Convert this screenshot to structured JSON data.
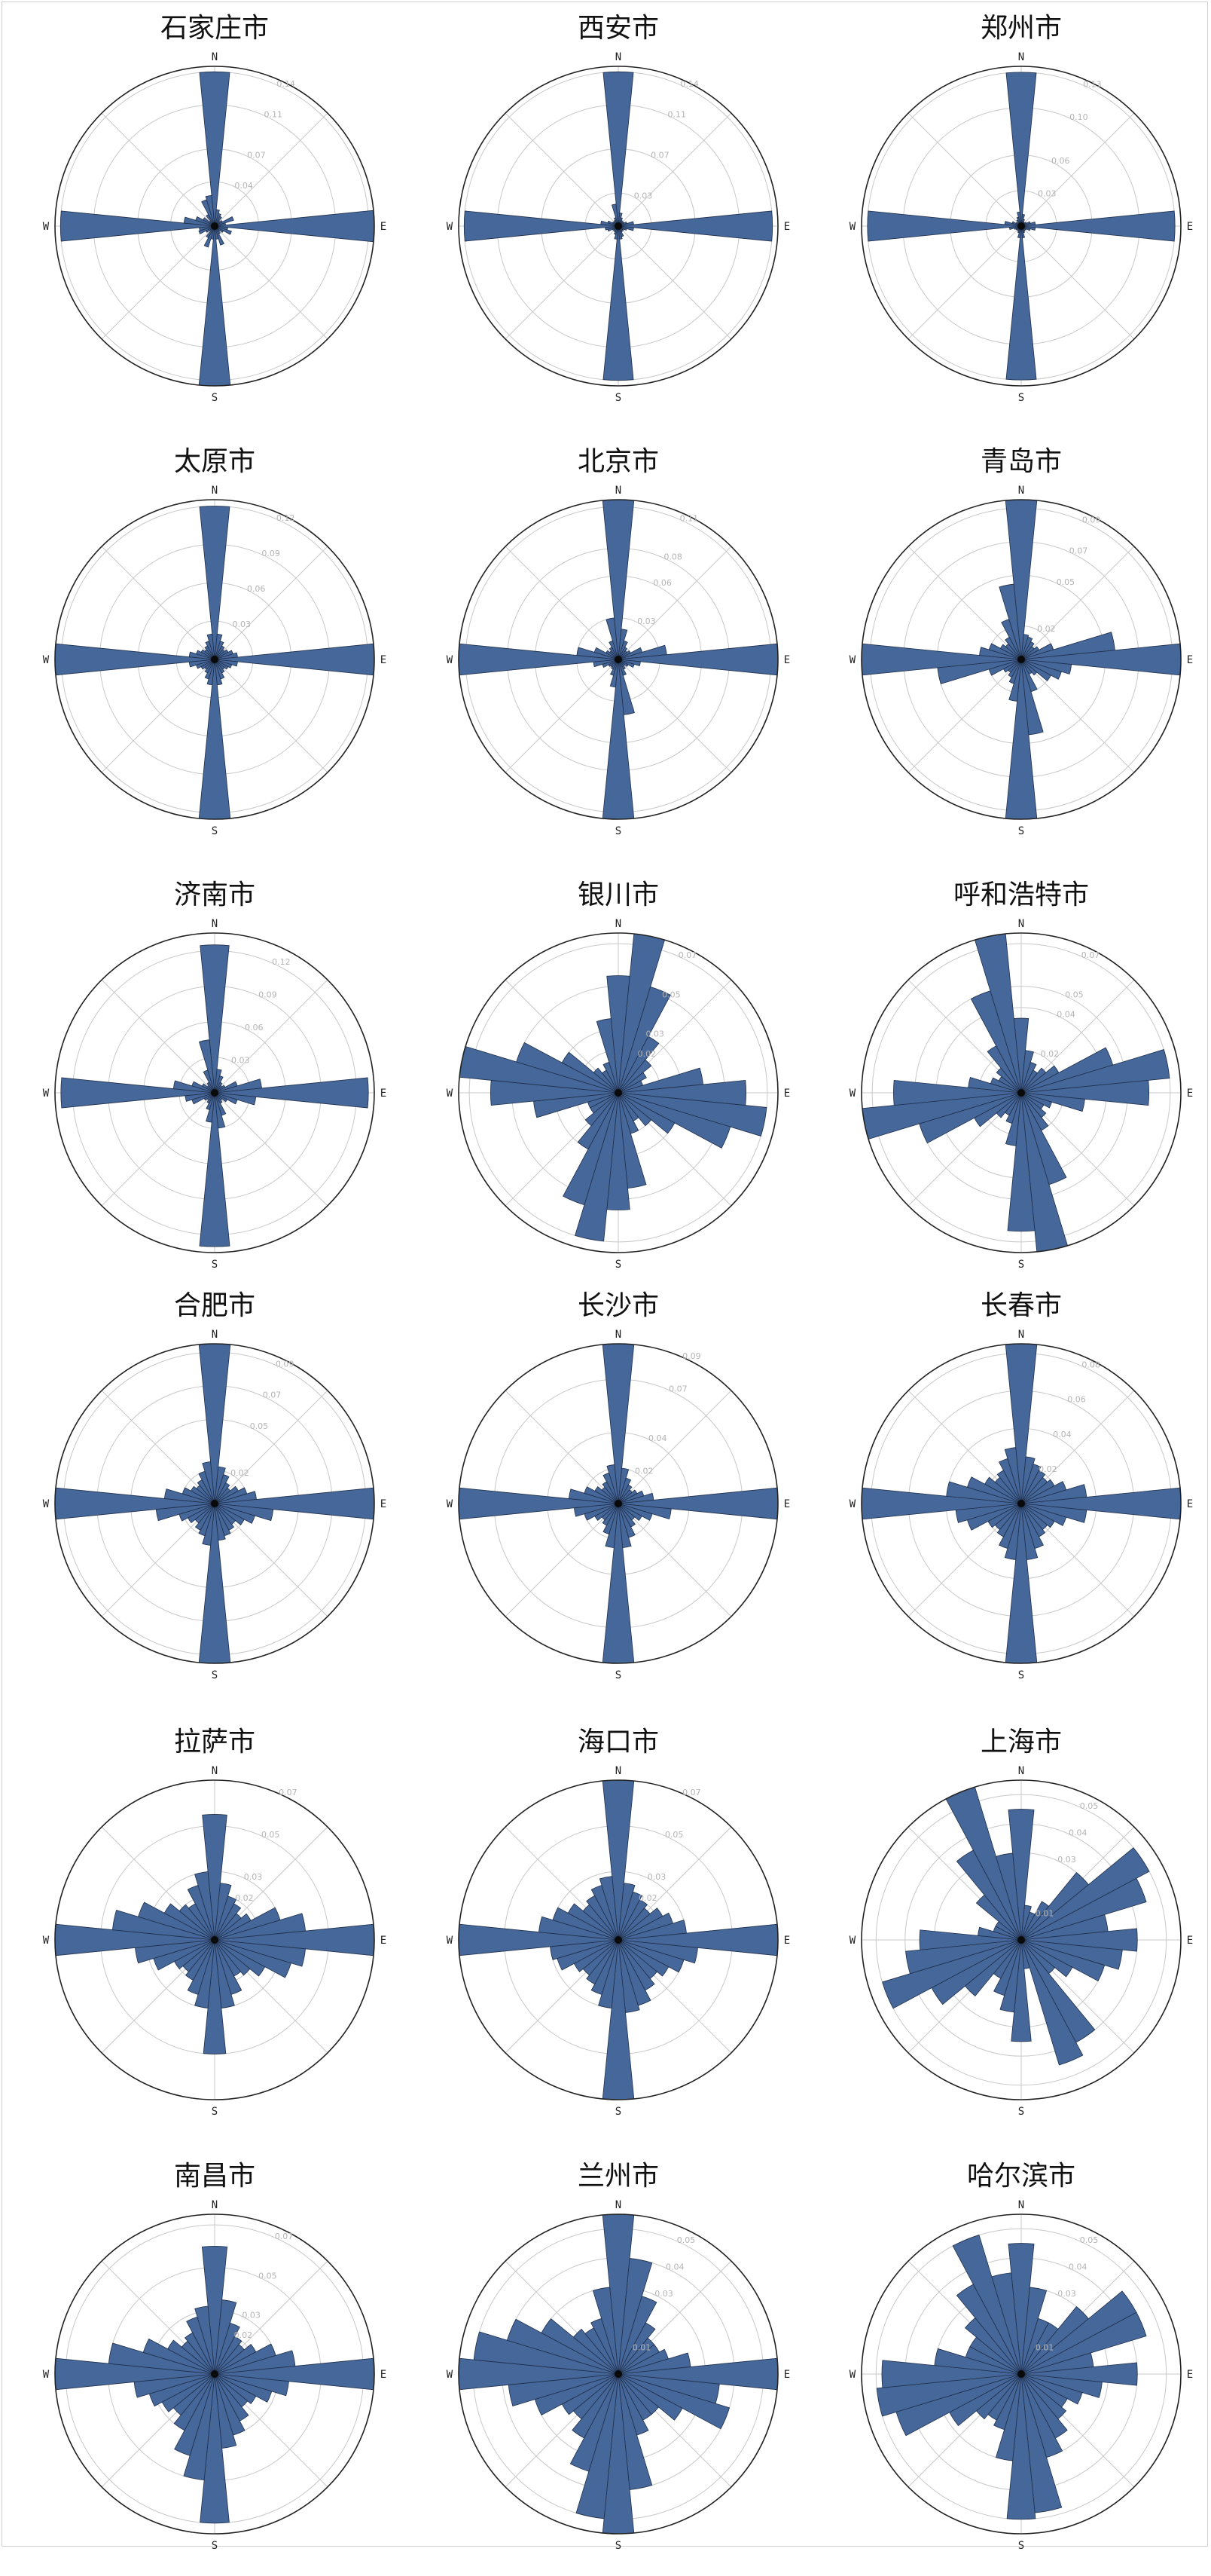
{
  "style": {
    "bar_fill": "#46679a",
    "bar_stroke": "#1f2f4a",
    "grid": "#c8c8c8",
    "outer": "#222222"
  },
  "chart_data": [
    {
      "type": "polar-bar",
      "title": "石家庄市",
      "directions": [
        "N",
        "E",
        "S",
        "W"
      ],
      "rmax": 0.145,
      "rticks": [
        0.04,
        0.07,
        0.11,
        0.14
      ],
      "values": [
        0.14,
        0.015,
        0.012,
        0.01,
        0.006,
        0.008,
        0.018,
        0.01,
        0.145,
        0.012,
        0.016,
        0.009,
        0.006,
        0.008,
        0.018,
        0.012,
        0.145,
        0.012,
        0.02,
        0.012,
        0.006,
        0.009,
        0.015,
        0.014,
        0.14,
        0.028,
        0.018,
        0.012,
        0.006,
        0.012,
        0.025,
        0.028
      ]
    },
    {
      "type": "polar-bar",
      "title": "西安市",
      "directions": [
        "N",
        "E",
        "S",
        "W"
      ],
      "rmax": 0.145,
      "rticks": [
        0.03,
        0.07,
        0.11,
        0.14
      ],
      "values": [
        0.14,
        0.012,
        0.008,
        0.006,
        0.005,
        0.006,
        0.008,
        0.014,
        0.14,
        0.014,
        0.008,
        0.006,
        0.005,
        0.006,
        0.01,
        0.012,
        0.14,
        0.012,
        0.008,
        0.006,
        0.005,
        0.006,
        0.01,
        0.012,
        0.14,
        0.016,
        0.01,
        0.006,
        0.005,
        0.006,
        0.008,
        0.02
      ]
    },
    {
      "type": "polar-bar",
      "title": "郑州市",
      "directions": [
        "N",
        "E",
        "S",
        "W"
      ],
      "rmax": 0.135,
      "rticks": [
        0.03,
        0.06,
        0.1,
        0.13
      ],
      "values": [
        0.13,
        0.01,
        0.006,
        0.004,
        0.004,
        0.005,
        0.008,
        0.012,
        0.13,
        0.012,
        0.008,
        0.005,
        0.004,
        0.005,
        0.006,
        0.01,
        0.13,
        0.01,
        0.006,
        0.005,
        0.004,
        0.005,
        0.006,
        0.01,
        0.13,
        0.014,
        0.008,
        0.005,
        0.004,
        0.006,
        0.008,
        0.012
      ]
    },
    {
      "type": "polar-bar",
      "title": "太原市",
      "directions": [
        "N",
        "E",
        "S",
        "W"
      ],
      "rmax": 0.125,
      "rticks": [
        0.03,
        0.06,
        0.09,
        0.12
      ],
      "values": [
        0.12,
        0.02,
        0.015,
        0.012,
        0.01,
        0.012,
        0.015,
        0.018,
        0.125,
        0.018,
        0.014,
        0.012,
        0.01,
        0.012,
        0.016,
        0.02,
        0.125,
        0.02,
        0.016,
        0.012,
        0.01,
        0.012,
        0.015,
        0.02,
        0.125,
        0.02,
        0.015,
        0.012,
        0.01,
        0.012,
        0.015,
        0.02
      ]
    },
    {
      "type": "polar-bar",
      "title": "北京市",
      "directions": [
        "N",
        "E",
        "S",
        "W"
      ],
      "rmax": 0.115,
      "rticks": [
        0.03,
        0.06,
        0.08,
        0.11
      ],
      "values": [
        0.115,
        0.022,
        0.014,
        0.01,
        0.008,
        0.01,
        0.018,
        0.035,
        0.115,
        0.016,
        0.012,
        0.008,
        0.006,
        0.008,
        0.012,
        0.04,
        0.115,
        0.02,
        0.012,
        0.008,
        0.007,
        0.008,
        0.012,
        0.018,
        0.115,
        0.03,
        0.018,
        0.01,
        0.008,
        0.01,
        0.014,
        0.03
      ]
    },
    {
      "type": "polar-bar",
      "title": "青岛市",
      "directions": [
        "N",
        "E",
        "S",
        "W"
      ],
      "rmax": 0.095,
      "rticks": [
        0.02,
        0.05,
        0.07,
        0.09
      ],
      "values": [
        0.095,
        0.015,
        0.014,
        0.012,
        0.01,
        0.012,
        0.02,
        0.056,
        0.095,
        0.03,
        0.025,
        0.02,
        0.012,
        0.01,
        0.02,
        0.045,
        0.095,
        0.025,
        0.015,
        0.012,
        0.01,
        0.012,
        0.02,
        0.05,
        0.095,
        0.025,
        0.02,
        0.014,
        0.012,
        0.015,
        0.025,
        0.045
      ]
    },
    {
      "type": "polar-bar",
      "title": "济南市",
      "directions": [
        "N",
        "E",
        "S",
        "W"
      ],
      "rmax": 0.135,
      "rticks": [
        0.03,
        0.06,
        0.09,
        0.12
      ],
      "values": [
        0.125,
        0.02,
        0.015,
        0.01,
        0.008,
        0.01,
        0.02,
        0.04,
        0.13,
        0.035,
        0.02,
        0.012,
        0.008,
        0.01,
        0.02,
        0.03,
        0.13,
        0.025,
        0.015,
        0.01,
        0.008,
        0.01,
        0.02,
        0.025,
        0.13,
        0.035,
        0.02,
        0.012,
        0.008,
        0.01,
        0.02,
        0.045
      ]
    },
    {
      "type": "polar-bar",
      "title": "银川市",
      "directions": [
        "N",
        "E",
        "S",
        "W"
      ],
      "rmax": 0.075,
      "rticks": [
        0.02,
        0.03,
        0.05,
        0.07
      ],
      "values": [
        0.055,
        0.075,
        0.052,
        0.03,
        0.02,
        0.015,
        0.012,
        0.04,
        0.06,
        0.07,
        0.055,
        0.03,
        0.02,
        0.015,
        0.02,
        0.045,
        0.055,
        0.07,
        0.055,
        0.03,
        0.02,
        0.015,
        0.015,
        0.04,
        0.06,
        0.075,
        0.05,
        0.03,
        0.015,
        0.012,
        0.015,
        0.035
      ]
    },
    {
      "type": "polar-bar",
      "title": "呼和浩特市",
      "directions": [
        "N",
        "E",
        "S",
        "W"
      ],
      "rmax": 0.075,
      "rticks": [
        0.02,
        0.04,
        0.05,
        0.07
      ],
      "values": [
        0.035,
        0.02,
        0.015,
        0.012,
        0.015,
        0.02,
        0.045,
        0.07,
        0.06,
        0.03,
        0.015,
        0.012,
        0.015,
        0.02,
        0.045,
        0.075,
        0.065,
        0.025,
        0.015,
        0.012,
        0.015,
        0.025,
        0.05,
        0.075,
        0.06,
        0.025,
        0.015,
        0.012,
        0.015,
        0.025,
        0.05,
        0.075
      ]
    },
    {
      "type": "polar-bar",
      "title": "合肥市",
      "directions": [
        "N",
        "E",
        "S",
        "W"
      ],
      "rmax": 0.095,
      "rticks": [
        0.02,
        0.05,
        0.07,
        0.09
      ],
      "values": [
        0.095,
        0.022,
        0.018,
        0.014,
        0.012,
        0.016,
        0.02,
        0.025,
        0.095,
        0.035,
        0.025,
        0.02,
        0.016,
        0.018,
        0.02,
        0.022,
        0.095,
        0.025,
        0.02,
        0.018,
        0.015,
        0.018,
        0.022,
        0.035,
        0.095,
        0.03,
        0.02,
        0.016,
        0.014,
        0.016,
        0.02,
        0.025
      ]
    },
    {
      "type": "polar-bar",
      "title": "长沙市",
      "directions": [
        "N",
        "E",
        "S",
        "W"
      ],
      "rmax": 0.09,
      "rticks": [
        0.02,
        0.04,
        0.07,
        0.09
      ],
      "values": [
        0.09,
        0.02,
        0.015,
        0.012,
        0.01,
        0.012,
        0.015,
        0.02,
        0.09,
        0.03,
        0.02,
        0.015,
        0.012,
        0.015,
        0.02,
        0.025,
        0.09,
        0.025,
        0.018,
        0.014,
        0.012,
        0.015,
        0.02,
        0.025,
        0.09,
        0.028,
        0.02,
        0.015,
        0.012,
        0.014,
        0.018,
        0.022
      ]
    },
    {
      "type": "polar-bar",
      "title": "长春市",
      "directions": [
        "N",
        "E",
        "S",
        "W"
      ],
      "rmax": 0.085,
      "rticks": [
        0.02,
        0.04,
        0.06,
        0.08
      ],
      "values": [
        0.085,
        0.025,
        0.022,
        0.02,
        0.018,
        0.02,
        0.025,
        0.035,
        0.085,
        0.035,
        0.025,
        0.02,
        0.018,
        0.02,
        0.025,
        0.03,
        0.085,
        0.03,
        0.025,
        0.02,
        0.018,
        0.02,
        0.03,
        0.035,
        0.085,
        0.04,
        0.03,
        0.022,
        0.018,
        0.02,
        0.025,
        0.03
      ]
    },
    {
      "type": "polar-bar",
      "title": "拉萨市",
      "directions": [
        "N",
        "E",
        "S",
        "W"
      ],
      "rmax": 0.07,
      "rticks": [
        0.02,
        0.03,
        0.05,
        0.07
      ],
      "values": [
        0.055,
        0.025,
        0.02,
        0.018,
        0.015,
        0.018,
        0.03,
        0.04,
        0.07,
        0.04,
        0.035,
        0.025,
        0.02,
        0.018,
        0.025,
        0.03,
        0.05,
        0.03,
        0.025,
        0.02,
        0.018,
        0.02,
        0.028,
        0.035,
        0.07,
        0.045,
        0.035,
        0.025,
        0.02,
        0.018,
        0.025,
        0.03
      ]
    },
    {
      "type": "polar-bar",
      "title": "海口市",
      "directions": [
        "N",
        "E",
        "S",
        "W"
      ],
      "rmax": 0.07,
      "rticks": [
        0.02,
        0.03,
        0.05,
        0.07
      ],
      "values": [
        0.07,
        0.025,
        0.022,
        0.02,
        0.018,
        0.022,
        0.025,
        0.03,
        0.07,
        0.035,
        0.03,
        0.025,
        0.022,
        0.025,
        0.03,
        0.032,
        0.07,
        0.03,
        0.025,
        0.022,
        0.02,
        0.022,
        0.028,
        0.03,
        0.07,
        0.035,
        0.03,
        0.025,
        0.02,
        0.022,
        0.025,
        0.028
      ]
    },
    {
      "type": "polar-bar",
      "title": "上海市",
      "directions": [
        "N",
        "E",
        "S",
        "W"
      ],
      "rmax": 0.055,
      "rticks": [
        0.01,
        0.03,
        0.04,
        0.05
      ],
      "values": [
        0.045,
        0.012,
        0.01,
        0.015,
        0.03,
        0.05,
        0.045,
        0.03,
        0.04,
        0.035,
        0.03,
        0.02,
        0.015,
        0.04,
        0.045,
        0.01,
        0.035,
        0.025,
        0.02,
        0.015,
        0.025,
        0.035,
        0.05,
        0.04,
        0.035,
        0.015,
        0.01,
        0.01,
        0.02,
        0.035,
        0.055,
        0.03
      ]
    },
    {
      "type": "polar-bar",
      "title": "南昌市",
      "directions": [
        "N",
        "E",
        "S",
        "W"
      ],
      "rmax": 0.075,
      "rticks": [
        0.02,
        0.03,
        0.05,
        0.07
      ],
      "values": [
        0.06,
        0.035,
        0.025,
        0.02,
        0.018,
        0.022,
        0.03,
        0.038,
        0.075,
        0.035,
        0.028,
        0.022,
        0.02,
        0.025,
        0.03,
        0.035,
        0.07,
        0.05,
        0.04,
        0.03,
        0.025,
        0.028,
        0.032,
        0.038,
        0.075,
        0.05,
        0.035,
        0.025,
        0.02,
        0.022,
        0.028,
        0.032
      ]
    },
    {
      "type": "polar-bar",
      "title": "兰州市",
      "directions": [
        "N",
        "E",
        "S",
        "W"
      ],
      "rmax": 0.055,
      "rticks": [
        0.01,
        0.03,
        0.04,
        0.05
      ],
      "values": [
        0.055,
        0.04,
        0.028,
        0.02,
        0.016,
        0.016,
        0.018,
        0.025,
        0.055,
        0.035,
        0.04,
        0.025,
        0.018,
        0.018,
        0.022,
        0.04,
        0.055,
        0.05,
        0.035,
        0.025,
        0.02,
        0.022,
        0.03,
        0.038,
        0.055,
        0.05,
        0.04,
        0.03,
        0.02,
        0.018,
        0.02,
        0.03
      ]
    },
    {
      "type": "polar-bar",
      "title": "哈尔滨市",
      "directions": [
        "N",
        "E",
        "S",
        "W"
      ],
      "rmax": 0.055,
      "rticks": [
        0.01,
        0.03,
        0.04,
        0.05
      ],
      "values": [
        0.045,
        0.03,
        0.02,
        0.02,
        0.03,
        0.045,
        0.045,
        0.025,
        0.04,
        0.028,
        0.022,
        0.018,
        0.02,
        0.025,
        0.03,
        0.048,
        0.05,
        0.03,
        0.02,
        0.018,
        0.02,
        0.028,
        0.045,
        0.05,
        0.048,
        0.03,
        0.02,
        0.02,
        0.025,
        0.035,
        0.05,
        0.035
      ]
    }
  ]
}
